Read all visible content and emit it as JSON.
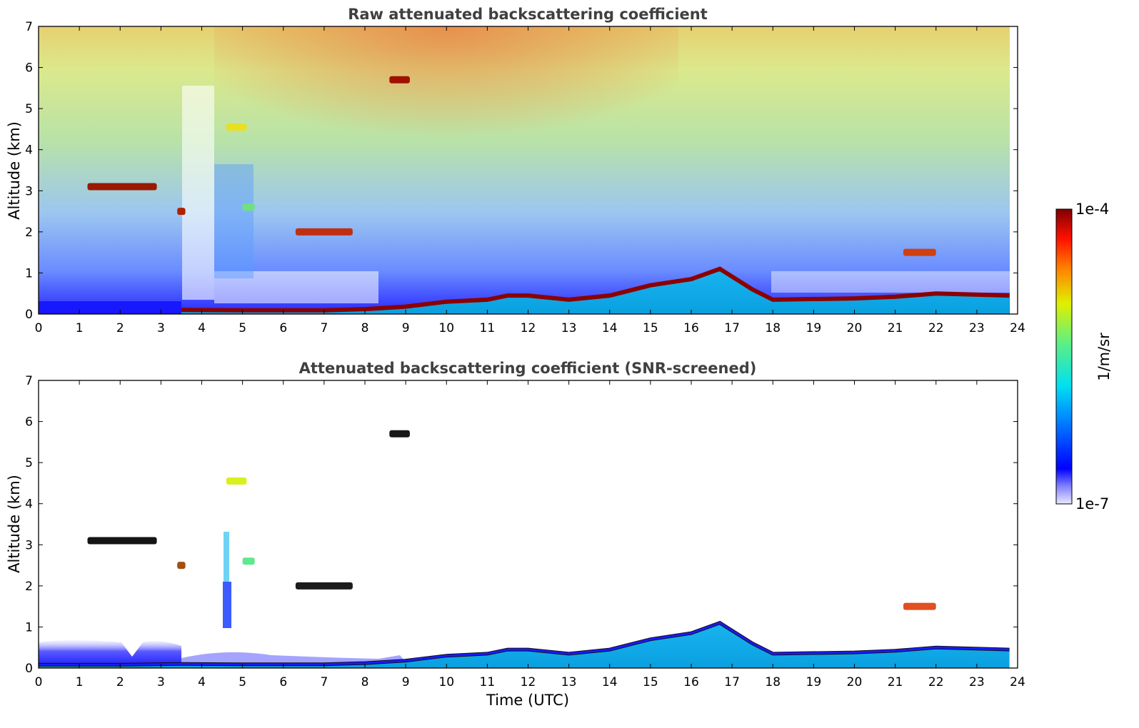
{
  "chart_data": [
    {
      "type": "heatmap",
      "title": "Raw attenuated backscattering coefficient",
      "ylabel": "Altitude (km)",
      "xlabel": "",
      "xlim": [
        0,
        24
      ],
      "ylim": [
        0,
        7
      ],
      "xticks": [
        "0",
        "1",
        "2",
        "3",
        "4",
        "5",
        "6",
        "7",
        "8",
        "9",
        "10",
        "11",
        "12",
        "13",
        "14",
        "15",
        "16",
        "17",
        "18",
        "19",
        "20",
        "21",
        "22",
        "23",
        "24"
      ],
      "yticks": [
        "0",
        "1",
        "2",
        "3",
        "4",
        "5",
        "6",
        "7"
      ],
      "features": {
        "boundary_layer_top_km": [
          {
            "t": 0,
            "z": 0.08
          },
          {
            "t": 2,
            "z": 0.08
          },
          {
            "t": 3.5,
            "z": 0.1
          },
          {
            "t": 5,
            "z": 0.09
          },
          {
            "t": 7,
            "z": 0.09
          },
          {
            "t": 8,
            "z": 0.12
          },
          {
            "t": 9,
            "z": 0.18
          },
          {
            "t": 10,
            "z": 0.3
          },
          {
            "t": 11,
            "z": 0.35
          },
          {
            "t": 11.5,
            "z": 0.45
          },
          {
            "t": 12,
            "z": 0.45
          },
          {
            "t": 13,
            "z": 0.35
          },
          {
            "t": 14,
            "z": 0.45
          },
          {
            "t": 15,
            "z": 0.7
          },
          {
            "t": 16,
            "z": 0.85
          },
          {
            "t": 16.7,
            "z": 1.1
          },
          {
            "t": 17.5,
            "z": 0.6
          },
          {
            "t": 18,
            "z": 0.35
          },
          {
            "t": 20,
            "z": 0.38
          },
          {
            "t": 21,
            "z": 0.42
          },
          {
            "t": 22,
            "z": 0.5
          },
          {
            "t": 23.8,
            "z": 0.45
          }
        ],
        "elevated_layers": [
          {
            "t_start": 1.2,
            "t_end": 2.9,
            "z_km": 3.1
          },
          {
            "t_start": 3.4,
            "t_end": 3.6,
            "z_km": 2.5
          },
          {
            "t_start": 6.3,
            "t_end": 7.7,
            "z_km": 2.0
          },
          {
            "t_start": 8.6,
            "t_end": 9.1,
            "z_km": 5.7
          },
          {
            "t_start": 4.6,
            "t_end": 5.1,
            "z_km": 4.55
          },
          {
            "t_start": 5.0,
            "t_end": 5.3,
            "z_km": 2.6
          },
          {
            "t_start": 21.2,
            "t_end": 22.0,
            "z_km": 1.5
          }
        ]
      }
    },
    {
      "type": "heatmap",
      "title": "Attenuated backscattering coefficient (SNR-screened)",
      "ylabel": "Altitude (km)",
      "xlabel": "Time (UTC)",
      "xlim": [
        0,
        24
      ],
      "ylim": [
        0,
        7
      ],
      "xticks": [
        "0",
        "1",
        "2",
        "3",
        "4",
        "5",
        "6",
        "7",
        "8",
        "9",
        "10",
        "11",
        "12",
        "13",
        "14",
        "15",
        "16",
        "17",
        "18",
        "19",
        "20",
        "21",
        "22",
        "23",
        "24"
      ],
      "yticks": [
        "0",
        "1",
        "2",
        "3",
        "4",
        "5",
        "6",
        "7"
      ]
    }
  ],
  "colorbar": {
    "label": "1/m/sr",
    "max_label": "1e-4",
    "min_label": "1e-7",
    "range": [
      1e-07,
      0.0001
    ],
    "scale": "log",
    "colormap": "jet"
  },
  "colors": {
    "title": "#404040",
    "layer_dark_red": "#8b0000",
    "near_surface_blue": "#1a1aff",
    "surface_cyan": "#19b4f0"
  }
}
